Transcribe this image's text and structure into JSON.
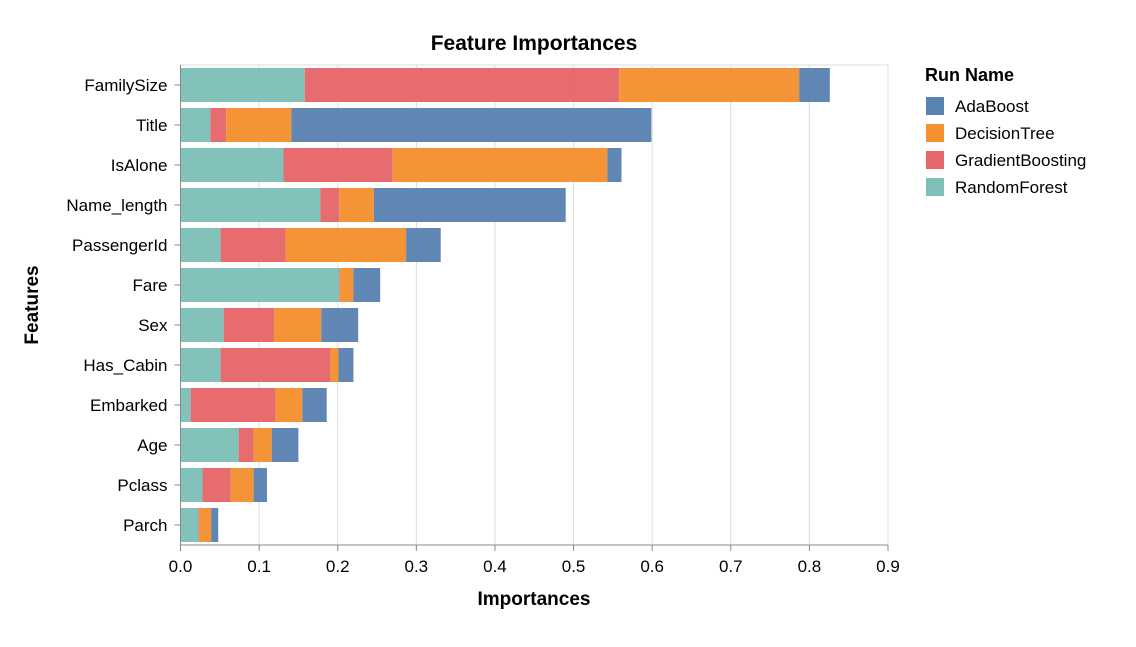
{
  "chart_data": {
    "type": "bar",
    "orientation": "horizontal",
    "stacked": true,
    "title": "Feature Importances",
    "xlabel": "Importances",
    "ylabel": "Features",
    "xlim": [
      0,
      0.9
    ],
    "xticks": [
      "0.0",
      "0.1",
      "0.2",
      "0.3",
      "0.4",
      "0.5",
      "0.6",
      "0.7",
      "0.8",
      "0.9"
    ],
    "grid": true,
    "legend": {
      "title": "Run Name",
      "position": "right"
    },
    "categories": [
      "FamilySize",
      "Title",
      "IsAlone",
      "Name_length",
      "PassengerId",
      "Fare",
      "Sex",
      "Has_Cabin",
      "Embarked",
      "Age",
      "Pclass",
      "Parch"
    ],
    "series": [
      {
        "name": "RandomForest",
        "color": "#7fbfb9",
        "values": [
          0.158,
          0.038,
          0.131,
          0.178,
          0.051,
          0.202,
          0.055,
          0.051,
          0.013,
          0.074,
          0.028,
          0.023
        ]
      },
      {
        "name": "GradientBoosting",
        "color": "#e6676a",
        "values": [
          0.4,
          0.02,
          0.139,
          0.024,
          0.083,
          0.001,
          0.064,
          0.14,
          0.108,
          0.019,
          0.036,
          0.001
        ]
      },
      {
        "name": "DecisionTree",
        "color": "#f5912f",
        "values": [
          0.229,
          0.083,
          0.273,
          0.044,
          0.153,
          0.017,
          0.06,
          0.01,
          0.034,
          0.023,
          0.029,
          0.015
        ]
      },
      {
        "name": "AdaBoost",
        "color": "#5b83b1",
        "values": [
          0.039,
          0.458,
          0.018,
          0.244,
          0.044,
          0.034,
          0.047,
          0.019,
          0.031,
          0.034,
          0.017,
          0.009
        ]
      }
    ],
    "legend_order": [
      "AdaBoost",
      "DecisionTree",
      "GradientBoosting",
      "RandomForest"
    ]
  }
}
